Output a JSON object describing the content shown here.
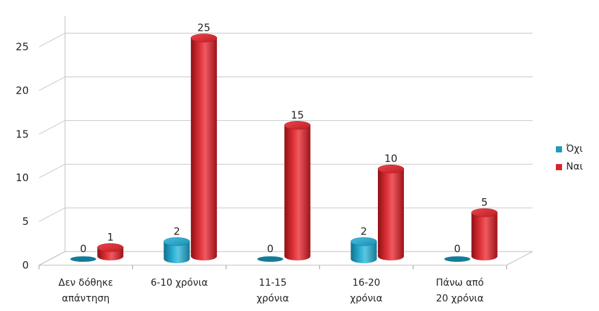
{
  "chart_data": {
    "type": "bar",
    "style": "3d-cylinder",
    "categories": [
      [
        "Δεν δόθηκε",
        "απάντηση"
      ],
      [
        "6-10 χρόνια"
      ],
      [
        "11-15",
        "χρόνια"
      ],
      [
        "16-20",
        "χρόνια"
      ],
      [
        "Πάνω από",
        "20 χρόνια"
      ]
    ],
    "series": [
      {
        "name": "Όχι",
        "color": "#1f9bbf",
        "values": [
          0,
          2,
          0,
          2,
          0
        ]
      },
      {
        "name": "Ναι",
        "color": "#d9232b",
        "values": [
          1,
          25,
          15,
          10,
          5
        ]
      }
    ],
    "y_ticks": [
      0,
      5,
      10,
      15,
      20,
      25
    ],
    "ylim": [
      0,
      27
    ],
    "grid": true,
    "legend": "right"
  }
}
